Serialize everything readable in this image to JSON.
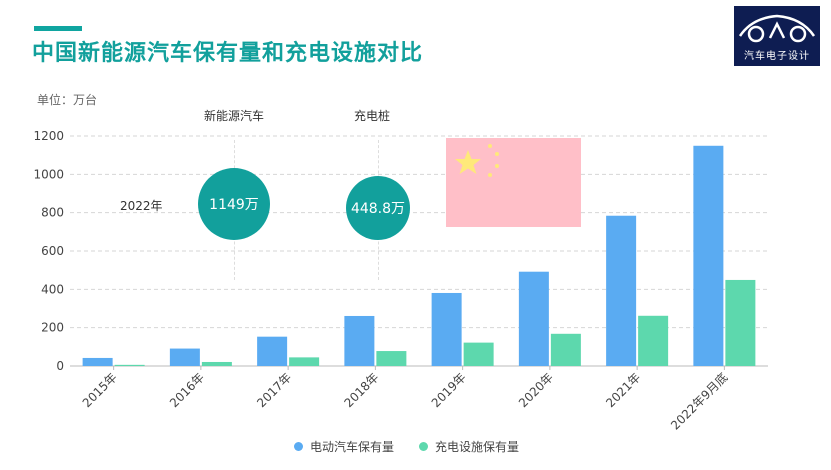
{
  "header": {
    "title": "中国新能源汽车保有量和充电设施对比",
    "unit": "单位：万台"
  },
  "logo": {
    "text": "汽车电子设计",
    "name": "car-logo-icon"
  },
  "annotations": {
    "year": "2022年",
    "ev_label": "新能源汽车",
    "ev_value": "1149万",
    "charger_label": "充电桩",
    "charger_value": "448.8万"
  },
  "flag": {
    "name": "china-flag-icon"
  },
  "chart_data": {
    "type": "bar",
    "categories": [
      "2015年",
      "2016年",
      "2017年",
      "2018年",
      "2019年",
      "2020年",
      "2021年",
      "2022年9月底"
    ],
    "series": [
      {
        "name": "电动汽车保有量",
        "color": "#5aabf2",
        "values": [
          42,
          91,
          153,
          261,
          381,
          492,
          784,
          1149
        ]
      },
      {
        "name": "充电设施保有量",
        "color": "#5dd8ad",
        "values": [
          6,
          21,
          45,
          78,
          122,
          168,
          262,
          449
        ]
      }
    ],
    "yticks": [
      0,
      200,
      400,
      600,
      800,
      1000,
      1200
    ],
    "ylim": [
      0,
      1200
    ],
    "grid": true,
    "legend_position": "bottom"
  }
}
